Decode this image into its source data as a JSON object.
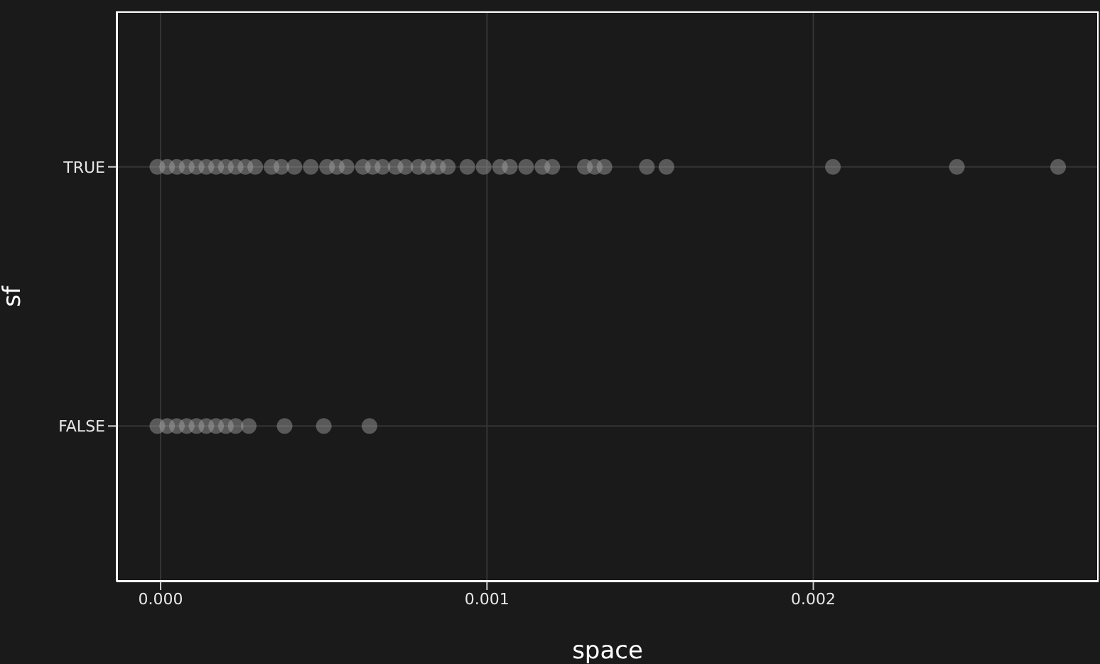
{
  "chart_data": {
    "type": "scatter",
    "orientation": "horizontal",
    "xlabel": "space",
    "ylabel": "sf",
    "grid": true,
    "marker": "circle",
    "categories": [
      "TRUE",
      "FALSE"
    ],
    "xlim": [
      -0.000135,
      0.002874
    ],
    "xticks": [
      {
        "value": 0,
        "label": "0.000"
      },
      {
        "value": 0.001,
        "label": "0.001"
      },
      {
        "value": 0.002,
        "label": "0.002"
      }
    ],
    "series": [
      {
        "color": "#a6a6a6",
        "x": [
          "TRUE",
          "TRUE",
          "TRUE",
          "TRUE",
          "TRUE",
          "TRUE",
          "TRUE",
          "TRUE",
          "TRUE",
          "TRUE",
          "TRUE",
          "TRUE",
          "TRUE",
          "TRUE",
          "TRUE",
          "TRUE",
          "TRUE",
          "TRUE",
          "TRUE",
          "TRUE",
          "TRUE",
          "TRUE",
          "TRUE",
          "TRUE",
          "TRUE",
          "TRUE",
          "TRUE",
          "TRUE",
          "TRUE",
          "TRUE",
          "TRUE",
          "TRUE",
          "TRUE",
          "TRUE",
          "TRUE",
          "TRUE",
          "TRUE",
          "TRUE",
          "TRUE",
          "TRUE",
          "TRUE",
          "TRUE",
          "FALSE",
          "FALSE",
          "FALSE",
          "FALSE",
          "FALSE",
          "FALSE",
          "FALSE",
          "FALSE",
          "FALSE",
          "FALSE",
          "FALSE",
          "FALSE",
          "FALSE"
        ],
        "values": [
          -1e-05,
          2e-05,
          5e-05,
          8e-05,
          0.00011,
          0.00014,
          0.00017,
          0.0002,
          0.00023,
          0.00026,
          0.00029,
          0.00034,
          0.00037,
          0.00041,
          0.00046,
          0.00051,
          0.00054,
          0.00057,
          0.00062,
          0.00065,
          0.00068,
          0.00072,
          0.00075,
          0.00079,
          0.00082,
          0.00085,
          0.00088,
          0.00094,
          0.00099,
          0.00104,
          0.00107,
          0.00112,
          0.00117,
          0.0012,
          0.0013,
          0.00133,
          0.00136,
          0.00149,
          0.00155,
          0.00206,
          0.00244,
          0.00275,
          -1e-05,
          2e-05,
          5e-05,
          8e-05,
          0.00011,
          0.00014,
          0.00017,
          0.0002,
          0.00023,
          0.00027,
          0.00038,
          0.0005,
          0.00064
        ]
      }
    ]
  }
}
